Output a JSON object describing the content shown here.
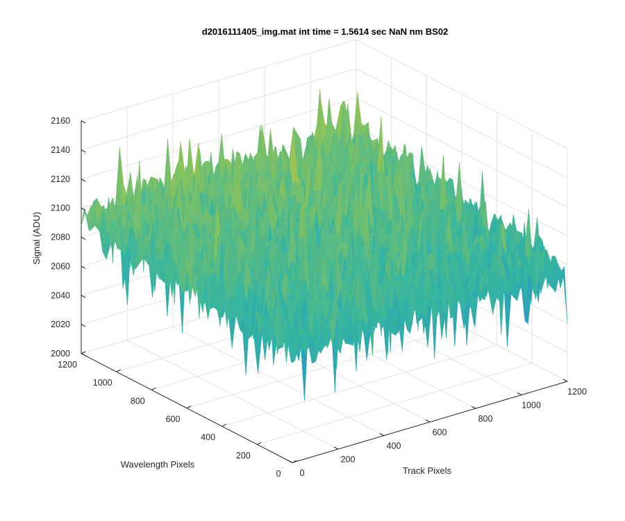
{
  "chart_data": {
    "type": "surface",
    "title": "d2016111405_img.mat int time = 1.5614 sec  NaN nm BS02",
    "xlabel": "Track Pixels",
    "ylabel": "Wavelength Pixels",
    "zlabel": "Signal (ADU)",
    "xlim": [
      0,
      1200
    ],
    "ylim": [
      0,
      1200
    ],
    "zlim": [
      2000,
      2160
    ],
    "x_ticks": [
      "0",
      "200",
      "400",
      "600",
      "800",
      "1000",
      "1200"
    ],
    "y_ticks": [
      "0",
      "200",
      "400",
      "600",
      "800",
      "1000",
      "1200"
    ],
    "z_ticks": [
      "2000",
      "2020",
      "2040",
      "2060",
      "2080",
      "2100",
      "2120",
      "2140",
      "2160"
    ],
    "grid": true,
    "colormap": "parula",
    "colors": {
      "low": "#1f8fd0",
      "mid": "#36b5a0",
      "high": "#e6c83a"
    },
    "surface_summary": {
      "mean_signal": 2085,
      "noise_amplitude": 15,
      "max_signal": 2155,
      "min_signal": 2010
    }
  }
}
